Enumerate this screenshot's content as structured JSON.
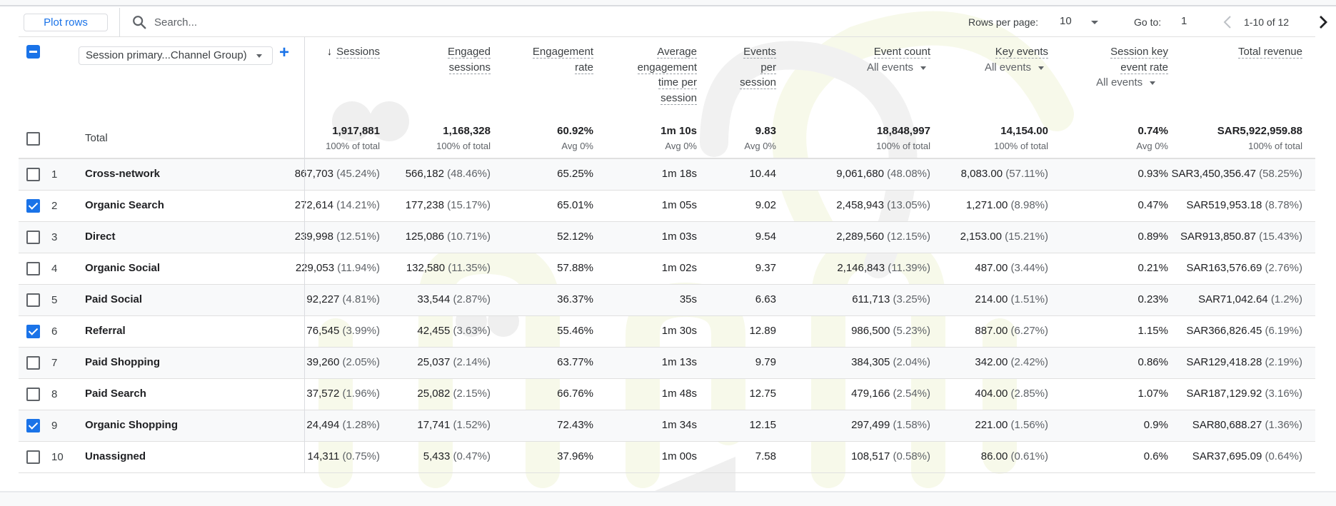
{
  "toolbar": {
    "plot_rows_label": "Plot rows",
    "search_placeholder": "Search...",
    "rows_per_page_label": "Rows per page:",
    "rows_per_page_value": "10",
    "goto_label": "Go to:",
    "goto_value": "1",
    "page_info": "1-10 of 12"
  },
  "dimension": {
    "selector_label": "Session primary...Channel Group)",
    "add_icon": "+"
  },
  "columns": [
    {
      "label_lines": [
        "Sessions"
      ],
      "sorted": true,
      "sort_icon": "↓",
      "event_filter": null
    },
    {
      "label_lines": [
        "Engaged",
        "sessions"
      ],
      "event_filter": null
    },
    {
      "label_lines": [
        "Engagement",
        "rate"
      ],
      "event_filter": null
    },
    {
      "label_lines": [
        "Average",
        "engagement",
        "time per",
        "session"
      ],
      "event_filter": null
    },
    {
      "label_lines": [
        "Events",
        "per",
        "session"
      ],
      "event_filter": null
    },
    {
      "label_lines": [
        "Event count"
      ],
      "event_filter": "All events"
    },
    {
      "label_lines": [
        "Key events"
      ],
      "event_filter": "All events"
    },
    {
      "label_lines": [
        "Session key",
        "event rate"
      ],
      "event_filter": "All events"
    },
    {
      "label_lines": [
        "Total revenue"
      ],
      "event_filter": null
    }
  ],
  "total": {
    "label": "Total",
    "values": [
      {
        "value": "1,917,881",
        "sub": "100% of total"
      },
      {
        "value": "1,168,328",
        "sub": "100% of total"
      },
      {
        "value": "60.92%",
        "sub": "Avg 0%"
      },
      {
        "value": "1m 10s",
        "sub": "Avg 0%"
      },
      {
        "value": "9.83",
        "sub": "Avg 0%"
      },
      {
        "value": "18,848,997",
        "sub": "100% of total"
      },
      {
        "value": "14,154.00",
        "sub": "100% of total"
      },
      {
        "value": "0.74%",
        "sub": "Avg 0%"
      },
      {
        "value": "SAR5,922,959.88",
        "sub": "100% of total"
      }
    ]
  },
  "rows": [
    {
      "index": "1",
      "name": "Cross-network",
      "checked": false,
      "cells": [
        {
          "v": "867,703",
          "p": "(45.24%)"
        },
        {
          "v": "566,182",
          "p": "(48.46%)"
        },
        {
          "v": "65.25%",
          "p": ""
        },
        {
          "v": "1m 18s",
          "p": ""
        },
        {
          "v": "10.44",
          "p": ""
        },
        {
          "v": "9,061,680",
          "p": "(48.08%)"
        },
        {
          "v": "8,083.00",
          "p": "(57.11%)"
        },
        {
          "v": "0.93%",
          "p": ""
        },
        {
          "v": "SAR3,450,356.47",
          "p": "(58.25%)"
        }
      ]
    },
    {
      "index": "2",
      "name": "Organic Search",
      "checked": true,
      "cells": [
        {
          "v": "272,614",
          "p": "(14.21%)"
        },
        {
          "v": "177,238",
          "p": "(15.17%)"
        },
        {
          "v": "65.01%",
          "p": ""
        },
        {
          "v": "1m 05s",
          "p": ""
        },
        {
          "v": "9.02",
          "p": ""
        },
        {
          "v": "2,458,943",
          "p": "(13.05%)"
        },
        {
          "v": "1,271.00",
          "p": "(8.98%)"
        },
        {
          "v": "0.47%",
          "p": ""
        },
        {
          "v": "SAR519,953.18",
          "p": "(8.78%)"
        }
      ]
    },
    {
      "index": "3",
      "name": "Direct",
      "checked": false,
      "cells": [
        {
          "v": "239,998",
          "p": "(12.51%)"
        },
        {
          "v": "125,086",
          "p": "(10.71%)"
        },
        {
          "v": "52.12%",
          "p": ""
        },
        {
          "v": "1m 03s",
          "p": ""
        },
        {
          "v": "9.54",
          "p": ""
        },
        {
          "v": "2,289,560",
          "p": "(12.15%)"
        },
        {
          "v": "2,153.00",
          "p": "(15.21%)"
        },
        {
          "v": "0.89%",
          "p": ""
        },
        {
          "v": "SAR913,850.87",
          "p": "(15.43%)"
        }
      ]
    },
    {
      "index": "4",
      "name": "Organic Social",
      "checked": false,
      "cells": [
        {
          "v": "229,053",
          "p": "(11.94%)"
        },
        {
          "v": "132,580",
          "p": "(11.35%)"
        },
        {
          "v": "57.88%",
          "p": ""
        },
        {
          "v": "1m 02s",
          "p": ""
        },
        {
          "v": "9.37",
          "p": ""
        },
        {
          "v": "2,146,843",
          "p": "(11.39%)"
        },
        {
          "v": "487.00",
          "p": "(3.44%)"
        },
        {
          "v": "0.21%",
          "p": ""
        },
        {
          "v": "SAR163,576.69",
          "p": "(2.76%)"
        }
      ]
    },
    {
      "index": "5",
      "name": "Paid Social",
      "checked": false,
      "cells": [
        {
          "v": "92,227",
          "p": "(4.81%)"
        },
        {
          "v": "33,544",
          "p": "(2.87%)"
        },
        {
          "v": "36.37%",
          "p": ""
        },
        {
          "v": "35s",
          "p": ""
        },
        {
          "v": "6.63",
          "p": ""
        },
        {
          "v": "611,713",
          "p": "(3.25%)"
        },
        {
          "v": "214.00",
          "p": "(1.51%)"
        },
        {
          "v": "0.23%",
          "p": ""
        },
        {
          "v": "SAR71,042.64",
          "p": "(1.2%)"
        }
      ]
    },
    {
      "index": "6",
      "name": "Referral",
      "checked": true,
      "cells": [
        {
          "v": "76,545",
          "p": "(3.99%)"
        },
        {
          "v": "42,455",
          "p": "(3.63%)"
        },
        {
          "v": "55.46%",
          "p": ""
        },
        {
          "v": "1m 30s",
          "p": ""
        },
        {
          "v": "12.89",
          "p": ""
        },
        {
          "v": "986,500",
          "p": "(5.23%)"
        },
        {
          "v": "887.00",
          "p": "(6.27%)"
        },
        {
          "v": "1.15%",
          "p": ""
        },
        {
          "v": "SAR366,826.45",
          "p": "(6.19%)"
        }
      ]
    },
    {
      "index": "7",
      "name": "Paid Shopping",
      "checked": false,
      "cells": [
        {
          "v": "39,260",
          "p": "(2.05%)"
        },
        {
          "v": "25,037",
          "p": "(2.14%)"
        },
        {
          "v": "63.77%",
          "p": ""
        },
        {
          "v": "1m 13s",
          "p": ""
        },
        {
          "v": "9.79",
          "p": ""
        },
        {
          "v": "384,305",
          "p": "(2.04%)"
        },
        {
          "v": "342.00",
          "p": "(2.42%)"
        },
        {
          "v": "0.86%",
          "p": ""
        },
        {
          "v": "SAR129,418.28",
          "p": "(2.19%)"
        }
      ]
    },
    {
      "index": "8",
      "name": "Paid Search",
      "checked": false,
      "cells": [
        {
          "v": "37,572",
          "p": "(1.96%)"
        },
        {
          "v": "25,082",
          "p": "(2.15%)"
        },
        {
          "v": "66.76%",
          "p": ""
        },
        {
          "v": "1m 48s",
          "p": ""
        },
        {
          "v": "12.75",
          "p": ""
        },
        {
          "v": "479,166",
          "p": "(2.54%)"
        },
        {
          "v": "404.00",
          "p": "(2.85%)"
        },
        {
          "v": "1.07%",
          "p": ""
        },
        {
          "v": "SAR187,129.92",
          "p": "(3.16%)"
        }
      ]
    },
    {
      "index": "9",
      "name": "Organic Shopping",
      "checked": true,
      "cells": [
        {
          "v": "24,494",
          "p": "(1.28%)"
        },
        {
          "v": "17,741",
          "p": "(1.52%)"
        },
        {
          "v": "72.43%",
          "p": ""
        },
        {
          "v": "1m 34s",
          "p": ""
        },
        {
          "v": "12.15",
          "p": ""
        },
        {
          "v": "297,499",
          "p": "(1.58%)"
        },
        {
          "v": "221.00",
          "p": "(1.56%)"
        },
        {
          "v": "0.9%",
          "p": ""
        },
        {
          "v": "SAR80,688.27",
          "p": "(1.36%)"
        }
      ]
    },
    {
      "index": "10",
      "name": "Unassigned",
      "checked": false,
      "cells": [
        {
          "v": "14,311",
          "p": "(0.75%)"
        },
        {
          "v": "5,433",
          "p": "(0.47%)"
        },
        {
          "v": "37.96%",
          "p": ""
        },
        {
          "v": "1m 00s",
          "p": ""
        },
        {
          "v": "7.58",
          "p": ""
        },
        {
          "v": "108,517",
          "p": "(0.58%)"
        },
        {
          "v": "86.00",
          "p": "(0.61%)"
        },
        {
          "v": "0.6%",
          "p": ""
        },
        {
          "v": "SAR37,695.09",
          "p": "(0.64%)"
        }
      ]
    }
  ],
  "colors": {
    "accent": "#1a73e8",
    "row_alt": "#f8f9fa",
    "border": "#e0e0e0",
    "text_primary": "#202124",
    "text_secondary": "#5f6368"
  }
}
